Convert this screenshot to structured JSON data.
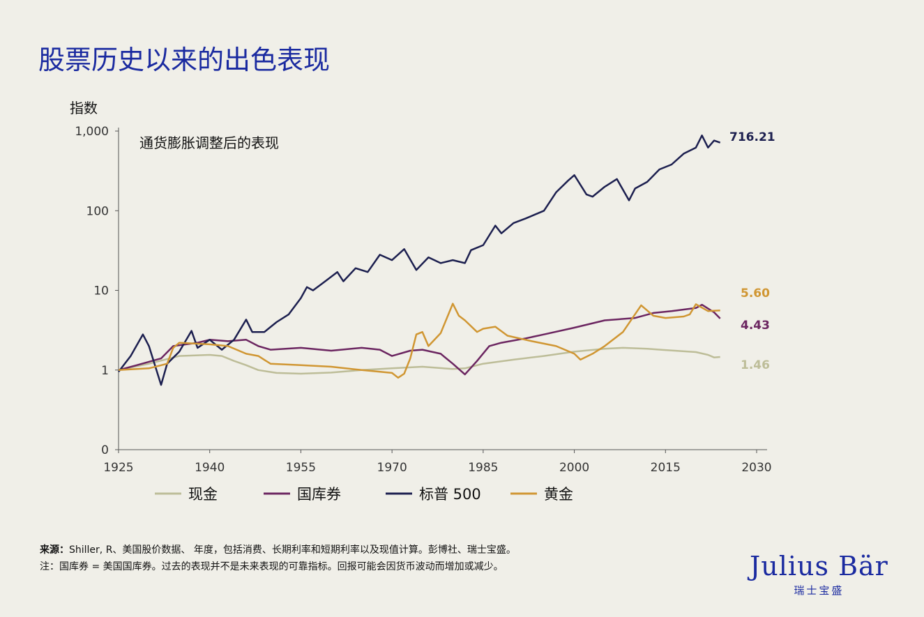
{
  "title": "股票历史以来的出色表现",
  "footnotes": {
    "source_label": "来源：",
    "source": "Shiller, R、美国股价数据、 年度，包括消费、长期利率和短期利率以及现值计算。彭博社、瑞士宝盛。",
    "note": "注：国库券 = 美国国库券。过去的表现并不是未来表现的可靠指标。回报可能会因货币波动而增加或减少。"
  },
  "logo": {
    "name": "Julius Bär",
    "sub": "瑞士宝盛"
  },
  "chart_data": {
    "type": "line",
    "ylabel": "指数",
    "subtitle": "通货膨胀调整后的表现",
    "yscale": "log",
    "ylim": [
      0.1,
      1000
    ],
    "yticks": [
      {
        "v": 0.1,
        "label": "0"
      },
      {
        "v": 1,
        "label": "1"
      },
      {
        "v": 10,
        "label": "10"
      },
      {
        "v": 100,
        "label": "100"
      },
      {
        "v": 1000,
        "label": "1,000"
      }
    ],
    "xlim": [
      1925,
      2030
    ],
    "xticks": [
      1925,
      1940,
      1955,
      1970,
      1985,
      2000,
      2015,
      2030
    ],
    "legend_position": "bottom",
    "series": [
      {
        "name": "现金",
        "color": "#bdbd98",
        "end_label": "1.46",
        "points": [
          [
            1925,
            1
          ],
          [
            1930,
            1.2
          ],
          [
            1935,
            1.5
          ],
          [
            1940,
            1.55
          ],
          [
            1942,
            1.5
          ],
          [
            1944,
            1.3
          ],
          [
            1946,
            1.15
          ],
          [
            1948,
            1.0
          ],
          [
            1951,
            0.92
          ],
          [
            1955,
            0.9
          ],
          [
            1960,
            0.93
          ],
          [
            1965,
            1.0
          ],
          [
            1970,
            1.05
          ],
          [
            1975,
            1.1
          ],
          [
            1980,
            1.03
          ],
          [
            1982,
            1.05
          ],
          [
            1985,
            1.2
          ],
          [
            1990,
            1.35
          ],
          [
            1995,
            1.5
          ],
          [
            2000,
            1.7
          ],
          [
            2005,
            1.85
          ],
          [
            2008,
            1.9
          ],
          [
            2012,
            1.85
          ],
          [
            2015,
            1.78
          ],
          [
            2020,
            1.68
          ],
          [
            2022,
            1.55
          ],
          [
            2023,
            1.44
          ],
          [
            2024,
            1.46
          ]
        ]
      },
      {
        "name": "国库券",
        "color": "#6b2560",
        "end_label": "4.43",
        "points": [
          [
            1925,
            1
          ],
          [
            1928,
            1.15
          ],
          [
            1932,
            1.4
          ],
          [
            1934,
            2.0
          ],
          [
            1938,
            2.2
          ],
          [
            1940,
            2.4
          ],
          [
            1943,
            2.3
          ],
          [
            1946,
            2.4
          ],
          [
            1948,
            2.0
          ],
          [
            1950,
            1.8
          ],
          [
            1955,
            1.9
          ],
          [
            1960,
            1.75
          ],
          [
            1965,
            1.9
          ],
          [
            1968,
            1.8
          ],
          [
            1970,
            1.5
          ],
          [
            1973,
            1.75
          ],
          [
            1975,
            1.8
          ],
          [
            1978,
            1.6
          ],
          [
            1980,
            1.2
          ],
          [
            1982,
            0.88
          ],
          [
            1984,
            1.3
          ],
          [
            1986,
            2.0
          ],
          [
            1988,
            2.2
          ],
          [
            1992,
            2.5
          ],
          [
            1995,
            2.8
          ],
          [
            2000,
            3.4
          ],
          [
            2005,
            4.2
          ],
          [
            2010,
            4.5
          ],
          [
            2013,
            5.2
          ],
          [
            2016,
            5.5
          ],
          [
            2020,
            6.0
          ],
          [
            2021,
            6.6
          ],
          [
            2023,
            5.3
          ],
          [
            2024,
            4.43
          ]
        ]
      },
      {
        "name": "标普 500",
        "color": "#1c1f4f",
        "end_label": "716.21",
        "points": [
          [
            1925,
            0.95
          ],
          [
            1927,
            1.5
          ],
          [
            1929,
            2.8
          ],
          [
            1930,
            2.0
          ],
          [
            1932,
            0.65
          ],
          [
            1933,
            1.2
          ],
          [
            1935,
            1.7
          ],
          [
            1937,
            3.1
          ],
          [
            1938,
            1.9
          ],
          [
            1940,
            2.4
          ],
          [
            1942,
            1.8
          ],
          [
            1944,
            2.4
          ],
          [
            1946,
            4.3
          ],
          [
            1947,
            3.0
          ],
          [
            1949,
            3.0
          ],
          [
            1951,
            4.0
          ],
          [
            1953,
            5.0
          ],
          [
            1955,
            8.0
          ],
          [
            1956,
            11
          ],
          [
            1957,
            10
          ],
          [
            1959,
            13
          ],
          [
            1961,
            17
          ],
          [
            1962,
            13
          ],
          [
            1964,
            19
          ],
          [
            1966,
            17
          ],
          [
            1968,
            28
          ],
          [
            1970,
            24
          ],
          [
            1972,
            33
          ],
          [
            1974,
            18
          ],
          [
            1976,
            26
          ],
          [
            1978,
            22
          ],
          [
            1980,
            24
          ],
          [
            1982,
            22
          ],
          [
            1983,
            32
          ],
          [
            1985,
            37
          ],
          [
            1987,
            65
          ],
          [
            1988,
            52
          ],
          [
            1990,
            70
          ],
          [
            1992,
            80
          ],
          [
            1995,
            100
          ],
          [
            1997,
            170
          ],
          [
            1999,
            240
          ],
          [
            2000,
            280
          ],
          [
            2002,
            160
          ],
          [
            2003,
            150
          ],
          [
            2005,
            200
          ],
          [
            2007,
            250
          ],
          [
            2009,
            135
          ],
          [
            2010,
            190
          ],
          [
            2012,
            230
          ],
          [
            2014,
            330
          ],
          [
            2016,
            380
          ],
          [
            2018,
            520
          ],
          [
            2020,
            620
          ],
          [
            2021,
            880
          ],
          [
            2022,
            620
          ],
          [
            2023,
            760
          ],
          [
            2024,
            716.21
          ]
        ]
      },
      {
        "name": "黄金",
        "color": "#d09632",
        "end_label": "5.60",
        "points": [
          [
            1925,
            1
          ],
          [
            1930,
            1.05
          ],
          [
            1933,
            1.2
          ],
          [
            1934,
            1.9
          ],
          [
            1935,
            2.2
          ],
          [
            1940,
            2.1
          ],
          [
            1943,
            2.0
          ],
          [
            1946,
            1.6
          ],
          [
            1948,
            1.5
          ],
          [
            1950,
            1.2
          ],
          [
            1955,
            1.15
          ],
          [
            1960,
            1.1
          ],
          [
            1965,
            1.0
          ],
          [
            1970,
            0.92
          ],
          [
            1971,
            0.8
          ],
          [
            1972,
            0.9
          ],
          [
            1973,
            1.4
          ],
          [
            1974,
            2.8
          ],
          [
            1975,
            3.0
          ],
          [
            1976,
            2.0
          ],
          [
            1978,
            2.9
          ],
          [
            1980,
            6.8
          ],
          [
            1981,
            4.8
          ],
          [
            1982,
            4.2
          ],
          [
            1984,
            3.0
          ],
          [
            1985,
            3.3
          ],
          [
            1987,
            3.5
          ],
          [
            1989,
            2.7
          ],
          [
            1993,
            2.3
          ],
          [
            1997,
            2.0
          ],
          [
            2000,
            1.6
          ],
          [
            2001,
            1.35
          ],
          [
            2003,
            1.6
          ],
          [
            2005,
            2.0
          ],
          [
            2008,
            3.0
          ],
          [
            2011,
            6.5
          ],
          [
            2013,
            4.8
          ],
          [
            2015,
            4.5
          ],
          [
            2018,
            4.7
          ],
          [
            2019,
            5.0
          ],
          [
            2020,
            6.7
          ],
          [
            2022,
            5.5
          ],
          [
            2024,
            5.6
          ]
        ]
      }
    ]
  }
}
